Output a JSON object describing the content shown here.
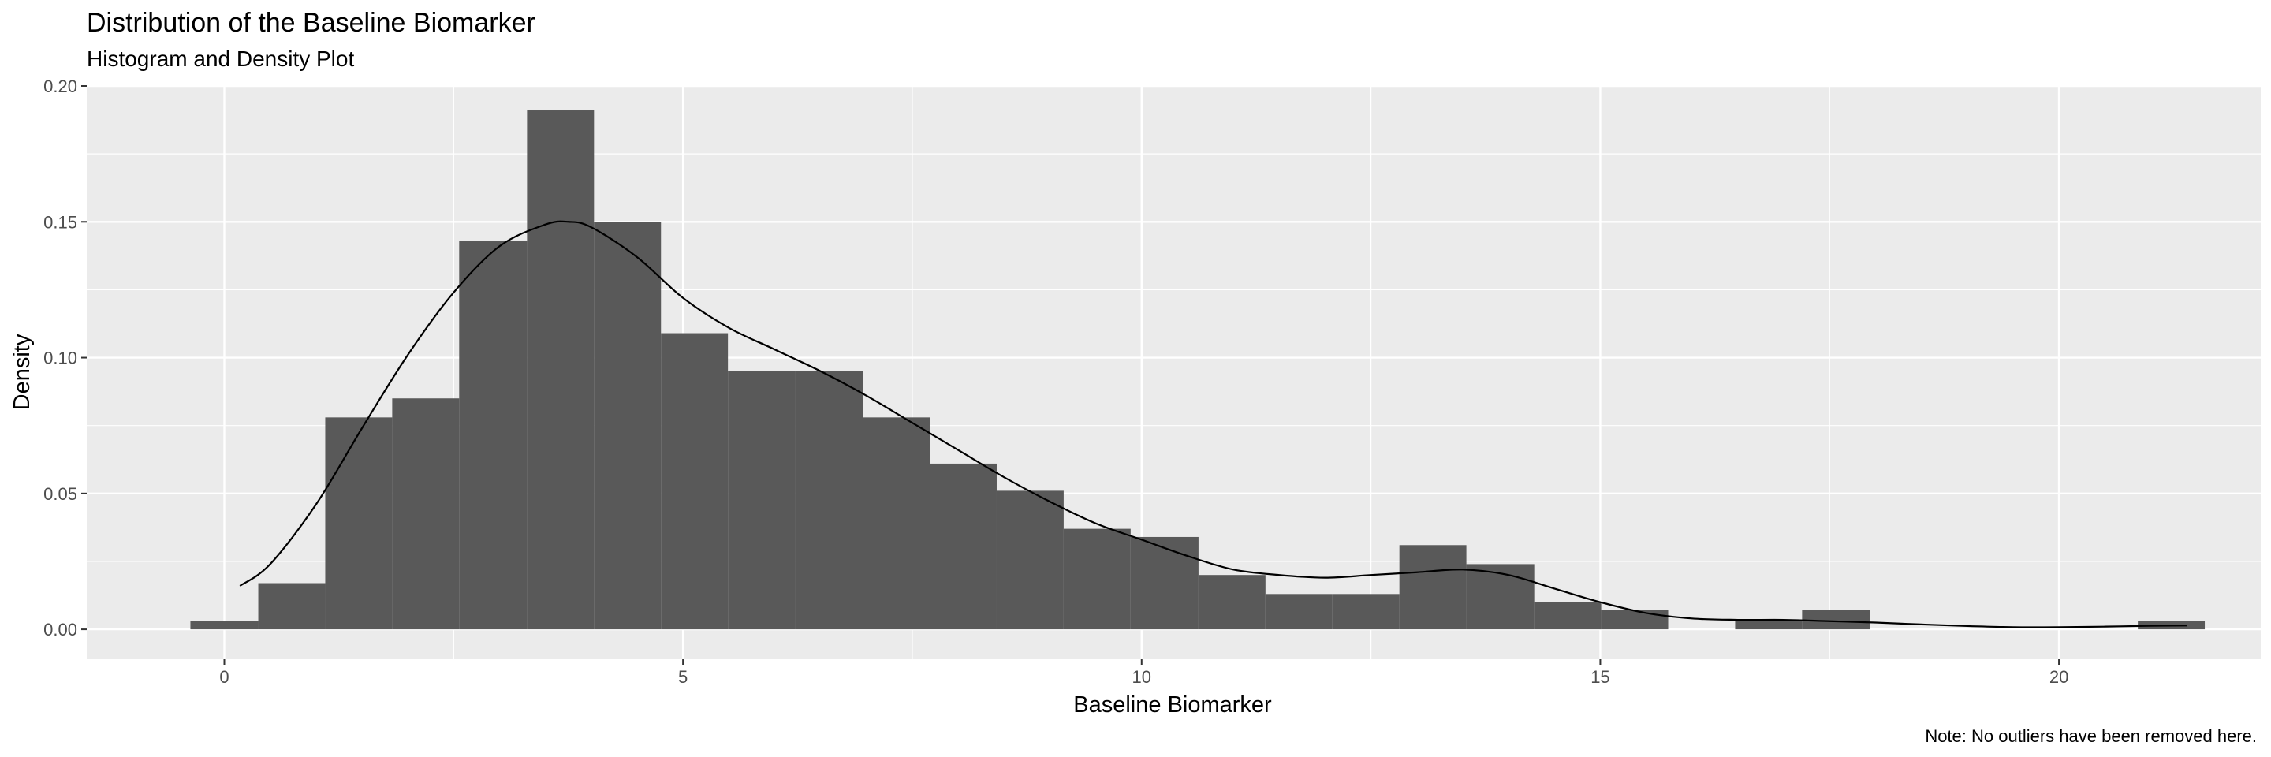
{
  "chart_data": {
    "type": "bar",
    "title": "Distribution of the Baseline Biomarker",
    "subtitle": "Histogram and Density Plot",
    "xlabel": "Baseline Biomarker",
    "ylabel": "Density",
    "caption": "Note: No outliers have been removed here.",
    "xlim": [
      -1.5,
      22.2
    ],
    "ylim": [
      -0.011,
      0.2
    ],
    "x_ticks": [
      0,
      5,
      10,
      15,
      20
    ],
    "x_tick_labels": [
      "0",
      "5",
      "10",
      "15",
      "20"
    ],
    "y_ticks": [
      0.0,
      0.05,
      0.1,
      0.15,
      0.2
    ],
    "y_tick_labels": [
      "0.00",
      "0.05",
      "0.10",
      "0.15",
      "0.20"
    ],
    "grid": true,
    "bins": [
      {
        "x0": -0.37,
        "x1": 0.37,
        "density": 0.003
      },
      {
        "x0": 0.37,
        "x1": 1.1,
        "density": 0.017
      },
      {
        "x0": 1.1,
        "x1": 1.83,
        "density": 0.078
      },
      {
        "x0": 1.83,
        "x1": 2.56,
        "density": 0.085
      },
      {
        "x0": 2.56,
        "x1": 3.3,
        "density": 0.143
      },
      {
        "x0": 3.3,
        "x1": 4.03,
        "density": 0.191
      },
      {
        "x0": 4.03,
        "x1": 4.76,
        "density": 0.15
      },
      {
        "x0": 4.76,
        "x1": 5.49,
        "density": 0.109
      },
      {
        "x0": 5.49,
        "x1": 6.22,
        "density": 0.095
      },
      {
        "x0": 6.22,
        "x1": 6.96,
        "density": 0.095
      },
      {
        "x0": 6.96,
        "x1": 7.69,
        "density": 0.078
      },
      {
        "x0": 7.69,
        "x1": 8.42,
        "density": 0.061
      },
      {
        "x0": 8.42,
        "x1": 9.15,
        "density": 0.051
      },
      {
        "x0": 9.15,
        "x1": 9.88,
        "density": 0.037
      },
      {
        "x0": 9.88,
        "x1": 10.62,
        "density": 0.034
      },
      {
        "x0": 10.62,
        "x1": 11.35,
        "density": 0.02
      },
      {
        "x0": 11.35,
        "x1": 12.08,
        "density": 0.013
      },
      {
        "x0": 12.08,
        "x1": 12.81,
        "density": 0.013
      },
      {
        "x0": 12.81,
        "x1": 13.54,
        "density": 0.031
      },
      {
        "x0": 13.54,
        "x1": 14.28,
        "density": 0.024
      },
      {
        "x0": 14.28,
        "x1": 15.01,
        "density": 0.01
      },
      {
        "x0": 15.01,
        "x1": 15.74,
        "density": 0.007
      },
      {
        "x0": 16.47,
        "x1": 17.2,
        "density": 0.003
      },
      {
        "x0": 17.2,
        "x1": 17.94,
        "density": 0.007
      },
      {
        "x0": 20.86,
        "x1": 21.59,
        "density": 0.003
      }
    ],
    "density_curve": {
      "x": [
        0.17,
        0.5,
        1.0,
        1.5,
        2.0,
        2.5,
        3.0,
        3.5,
        3.75,
        4.0,
        4.5,
        5.0,
        5.5,
        6.0,
        6.5,
        7.0,
        7.5,
        8.0,
        8.5,
        9.0,
        9.5,
        10.0,
        10.5,
        11.0,
        11.5,
        12.0,
        12.5,
        13.0,
        13.5,
        14.0,
        14.5,
        15.0,
        15.5,
        16.0,
        16.5,
        17.0,
        17.5,
        18.0,
        18.5,
        19.0,
        19.5,
        20.0,
        20.5,
        21.0,
        21.4
      ],
      "y": [
        0.016,
        0.024,
        0.046,
        0.074,
        0.101,
        0.124,
        0.141,
        0.149,
        0.15,
        0.148,
        0.137,
        0.122,
        0.111,
        0.103,
        0.095,
        0.086,
        0.076,
        0.066,
        0.056,
        0.047,
        0.039,
        0.033,
        0.027,
        0.022,
        0.02,
        0.019,
        0.02,
        0.021,
        0.022,
        0.02,
        0.015,
        0.01,
        0.006,
        0.004,
        0.0035,
        0.0035,
        0.003,
        0.0025,
        0.0018,
        0.0012,
        0.0008,
        0.0008,
        0.001,
        0.0013,
        0.0014
      ]
    },
    "colors": {
      "panel": "#ebebeb",
      "grid": "#ffffff",
      "bar": "#595959",
      "curve": "#000000",
      "tick_text": "#4d4d4d",
      "tick_mark": "#333333"
    }
  }
}
